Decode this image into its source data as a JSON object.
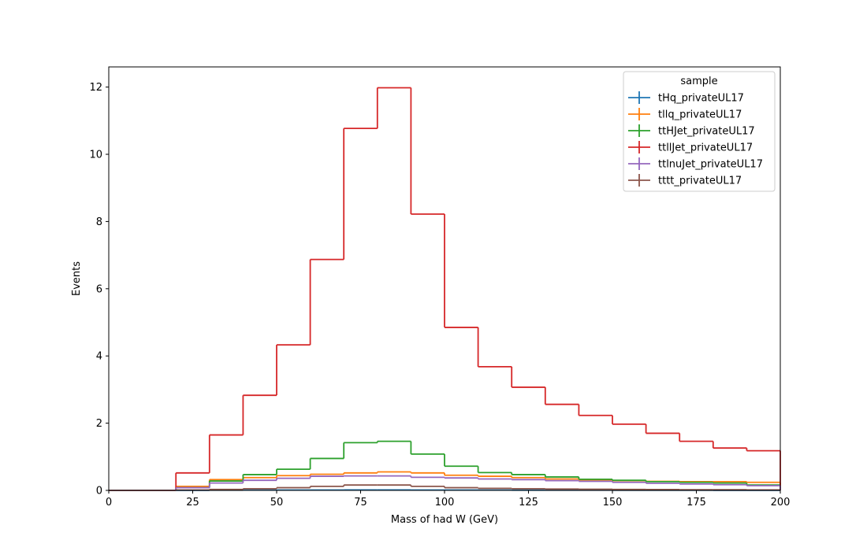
{
  "chart_data": {
    "type": "line",
    "title": "",
    "xlabel": "Mass of had W (GeV)",
    "ylabel": "Events",
    "xlim": [
      0,
      200
    ],
    "ylim": [
      0,
      12.6
    ],
    "grid": false,
    "legend_title": "sample",
    "legend_placement": "top-right",
    "x_ticks": [
      0,
      25,
      50,
      75,
      100,
      125,
      150,
      175,
      200
    ],
    "y_ticks": [
      0,
      2,
      4,
      6,
      8,
      10,
      12
    ],
    "bin_edges": [
      0,
      10,
      20,
      30,
      40,
      50,
      60,
      70,
      80,
      90,
      100,
      110,
      120,
      130,
      140,
      150,
      160,
      170,
      180,
      190,
      200
    ],
    "series": [
      {
        "name": "tHq_privateUL17",
        "color": "#1f77b4",
        "values": [
          0,
          0,
          0,
          0.005,
          0.008,
          0.01,
          0.012,
          0.015,
          0.015,
          0.012,
          0.01,
          0.008,
          0.007,
          0.006,
          0.005,
          0.004,
          0.003,
          0.003,
          0.002,
          0.002
        ]
      },
      {
        "name": "tllq_privateUL17",
        "color": "#ff7f0e",
        "values": [
          0,
          0,
          0.12,
          0.32,
          0.38,
          0.44,
          0.48,
          0.52,
          0.55,
          0.52,
          0.45,
          0.42,
          0.38,
          0.34,
          0.31,
          0.29,
          0.27,
          0.26,
          0.26,
          0.24
        ]
      },
      {
        "name": "ttHJet_privateUL17",
        "color": "#2ca02c",
        "values": [
          0,
          0,
          0.08,
          0.28,
          0.47,
          0.63,
          0.95,
          1.42,
          1.46,
          1.08,
          0.72,
          0.53,
          0.47,
          0.4,
          0.33,
          0.3,
          0.26,
          0.24,
          0.22,
          0.16
        ]
      },
      {
        "name": "ttllJet_privateUL17",
        "color": "#d62728",
        "values": [
          0,
          0,
          0.52,
          1.65,
          2.83,
          4.33,
          6.87,
          10.77,
          11.98,
          8.22,
          4.85,
          3.68,
          3.07,
          2.56,
          2.23,
          1.97,
          1.7,
          1.46,
          1.26,
          1.18
        ]
      },
      {
        "name": "ttlnuJet_privateUL17",
        "color": "#9467bd",
        "values": [
          0,
          0,
          0.08,
          0.22,
          0.3,
          0.36,
          0.42,
          0.43,
          0.43,
          0.39,
          0.37,
          0.34,
          0.32,
          0.29,
          0.27,
          0.24,
          0.21,
          0.19,
          0.17,
          0.14
        ]
      },
      {
        "name": "tttt_privateUL17",
        "color": "#8c564b",
        "values": [
          0,
          0,
          0.01,
          0.03,
          0.05,
          0.08,
          0.12,
          0.16,
          0.16,
          0.12,
          0.08,
          0.06,
          0.05,
          0.04,
          0.035,
          0.03,
          0.025,
          0.02,
          0.02,
          0.015
        ]
      }
    ]
  }
}
